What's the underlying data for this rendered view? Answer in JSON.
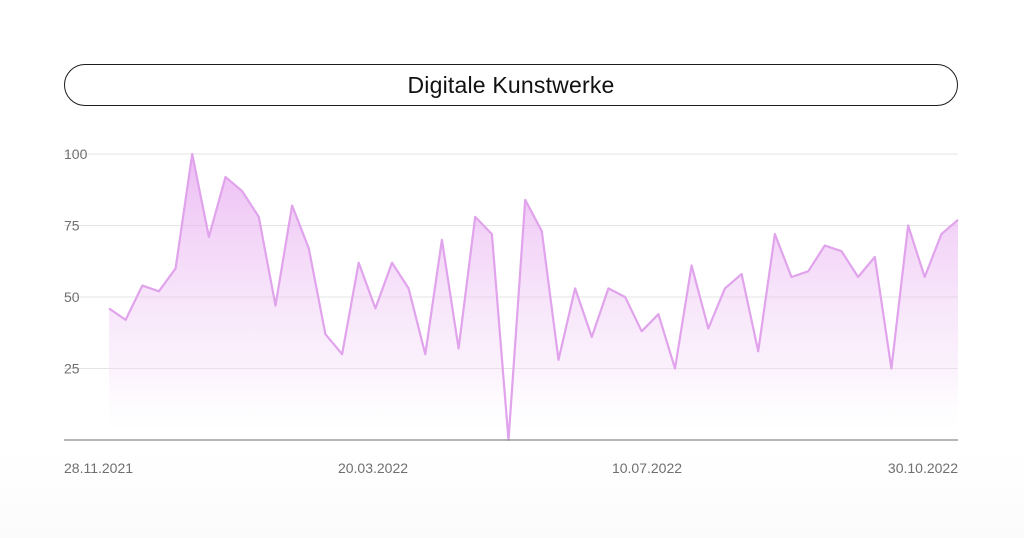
{
  "title": "Digitale Kunstwerke",
  "colors": {
    "line": "#e0a3ec",
    "fill_top": "#e6a6f0",
    "grid": "#e4e4e4",
    "axis": "#8a8a8a",
    "text": "#6f6f6f"
  },
  "chart_data": {
    "type": "area",
    "title": "Digitale Kunstwerke",
    "xlabel": "",
    "ylabel": "",
    "ylim": [
      0,
      100
    ],
    "y_ticks": [
      25,
      50,
      75,
      100
    ],
    "x_tick_labels": [
      "28.11.2021",
      "20.03.2022",
      "10.07.2022",
      "30.10.2022"
    ],
    "grid": true,
    "values": [
      46,
      42,
      54,
      52,
      60,
      100,
      71,
      92,
      87,
      78,
      47,
      82,
      67,
      37,
      30,
      62,
      46,
      62,
      53,
      30,
      70,
      32,
      78,
      72,
      0,
      84,
      73,
      28,
      53,
      36,
      53,
      50,
      38,
      44,
      25,
      61,
      39,
      53,
      58,
      31,
      72,
      57,
      59,
      68,
      66,
      57,
      64,
      25,
      75,
      57,
      72,
      77
    ]
  }
}
